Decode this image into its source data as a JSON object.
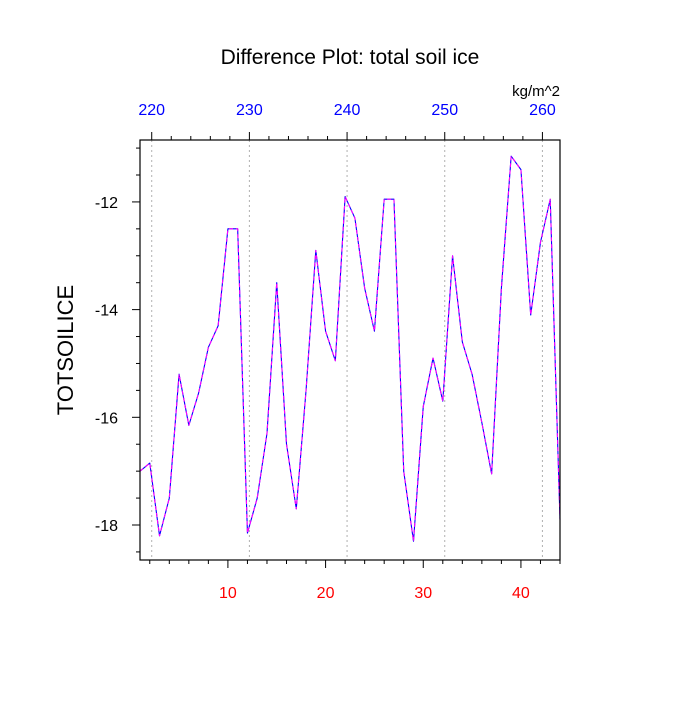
{
  "chart_data": {
    "type": "line",
    "title": "Difference Plot: total soil ice",
    "units_label": "kg/m^2",
    "ylabel": "TOTSOILICE",
    "xlabel": "",
    "xlim": [
      1,
      44
    ],
    "ylim": [
      -18.65,
      -10.85
    ],
    "x_ticks": [
      10,
      20,
      30,
      40
    ],
    "y_ticks": [
      -18,
      -16,
      -14,
      -12
    ],
    "top_axis": {
      "xlim": [
        218.8,
        261.8
      ],
      "ticks": [
        220,
        230,
        240,
        250,
        260
      ],
      "grid": true
    },
    "colors": {
      "bottom_tick_labels": "#ff0000",
      "top_tick_labels": "#0000ff",
      "series_primary": "#0000ff",
      "series_overlay": "#ff00ff",
      "axis": "#000000",
      "grid": "#b0b0b0"
    },
    "series": [
      {
        "x": [
          1,
          2,
          3,
          4,
          5,
          6,
          7,
          8,
          9,
          10,
          11,
          12,
          13,
          14,
          15,
          16,
          17,
          18,
          19,
          20,
          21,
          22,
          23,
          24,
          25,
          26,
          27,
          28,
          29,
          30,
          31,
          32,
          33,
          34,
          35,
          36,
          37,
          38,
          39,
          40,
          41,
          42,
          43,
          44
        ],
        "values": [
          -17.0,
          -16.85,
          -18.2,
          -17.5,
          -15.2,
          -16.15,
          -15.55,
          -14.7,
          -14.3,
          -12.5,
          -12.5,
          -18.15,
          -17.5,
          -16.3,
          -13.5,
          -16.5,
          -17.7,
          -15.5,
          -12.9,
          -14.4,
          -14.95,
          -11.9,
          -12.3,
          -13.6,
          -14.4,
          -11.95,
          -11.95,
          -17.0,
          -18.3,
          -15.8,
          -14.9,
          -15.7,
          -13.0,
          -14.6,
          -15.2,
          -16.1,
          -17.05,
          -13.6,
          -11.15,
          -11.4,
          -14.1,
          -12.75,
          -11.95,
          -17.9
        ]
      }
    ]
  }
}
